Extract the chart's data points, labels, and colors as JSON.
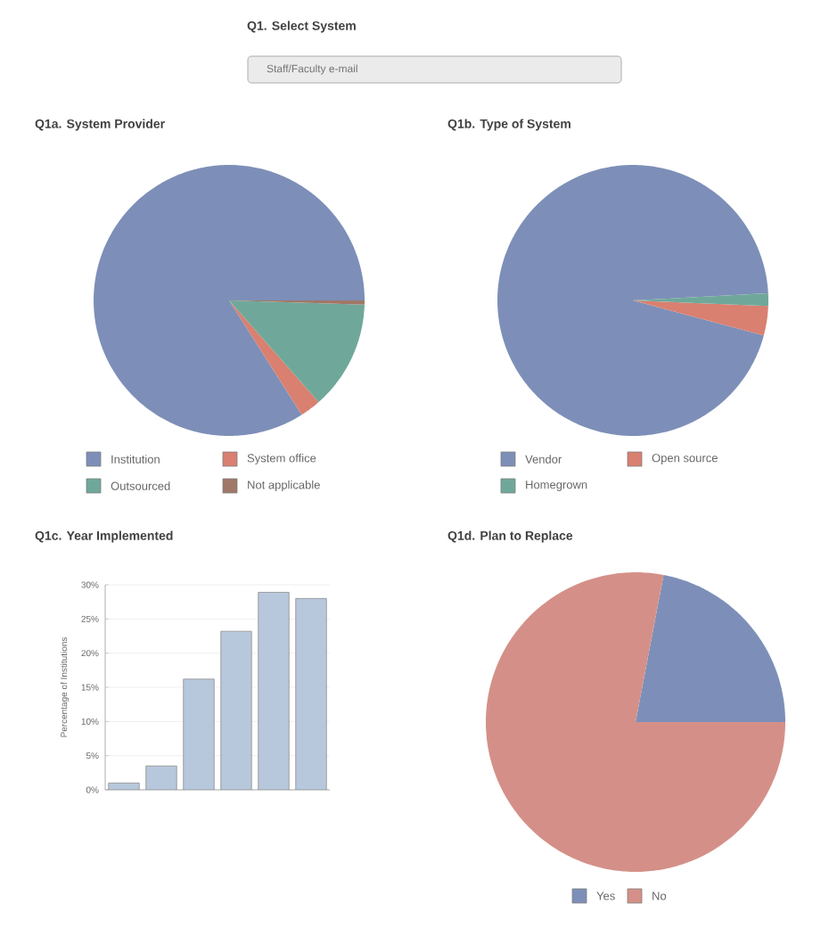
{
  "chart_data": [
    {
      "type": "other",
      "title": "Q1. Select System",
      "annotations": [
        "Staff/Faculty e-mail"
      ]
    },
    {
      "type": "pie",
      "title": "Q1a. System Provider",
      "categories": [
        "Institution",
        "System office",
        "Outsourced",
        "Not applicable"
      ],
      "values": [
        84,
        2.5,
        13,
        0.5
      ],
      "colors": [
        "#7d8fb8",
        "#d98070",
        "#6fa89a",
        "#a07868"
      ],
      "legend": "bottom"
    },
    {
      "type": "pie",
      "title": "Q1b. Type of System",
      "categories": [
        "Vendor",
        "Open source",
        "Homegrown"
      ],
      "values": [
        95,
        3.5,
        1.5
      ],
      "colors": [
        "#7d8fb8",
        "#d98070",
        "#6fa89a"
      ],
      "legend": "bottom"
    },
    {
      "type": "bar",
      "title": "Q1c. Year Implemented",
      "ylabel": "Percentage of Institutions",
      "categories": [
        null,
        null,
        null,
        null,
        null,
        null
      ],
      "values": [
        1.0,
        3.5,
        16.2,
        23.2,
        28.9,
        28.0
      ],
      "color": "#b8c8dc",
      "ylim": [
        0,
        30
      ],
      "yticks": [
        {
          "value": 0,
          "label": "0%"
        },
        {
          "value": 5,
          "label": "5%"
        },
        {
          "value": 10,
          "label": "10%"
        },
        {
          "value": 15,
          "label": "15%"
        },
        {
          "value": 20,
          "label": "20%"
        },
        {
          "value": 25,
          "label": "25%"
        },
        {
          "value": 30,
          "label": "30%"
        }
      ],
      "grid": "y"
    },
    {
      "type": "pie",
      "title": "Q1d. Plan to Replace",
      "categories": [
        "Yes",
        "No"
      ],
      "values": [
        22,
        78
      ],
      "colors": [
        "#7d8fb8",
        "#d49088"
      ],
      "legend": "bottom"
    }
  ]
}
